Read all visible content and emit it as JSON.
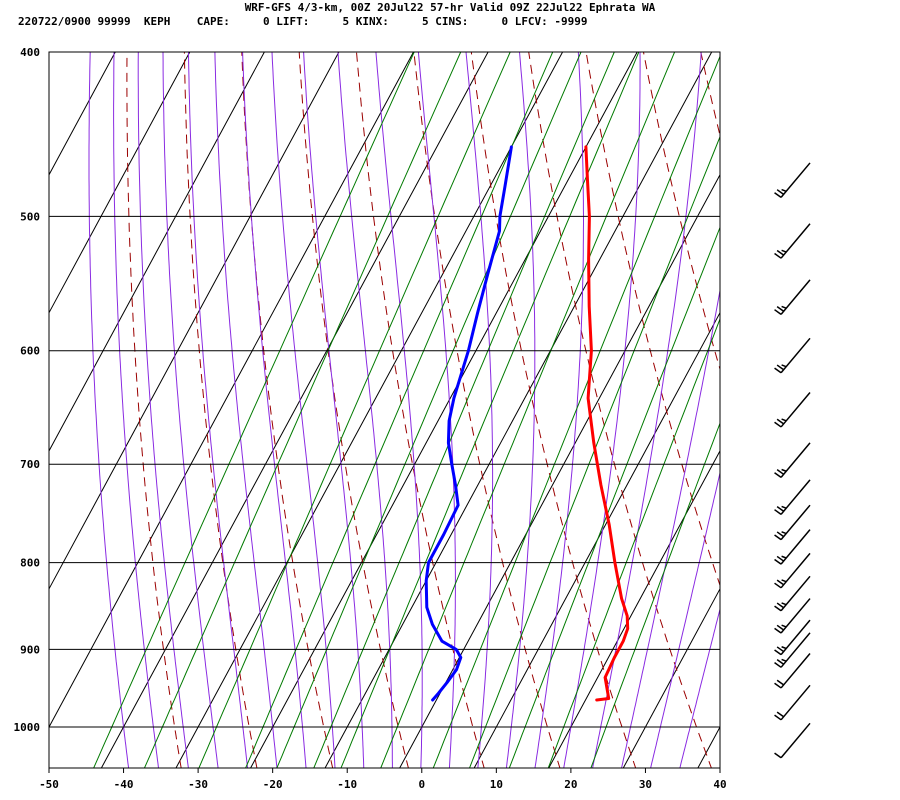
{
  "header": {
    "title": "WRF-GFS 4/3-km, 00Z 20Jul22 57-hr Valid 09Z 22Jul22 Ephrata WA",
    "station_line": "220722/0900 99999  KEPH    CAPE:     0 LIFT:     5 KINX:     5 CINS:     0 LFCV: -9999"
  },
  "colors": {
    "temperature": "#ff0000",
    "dewpoint": "#0000ff",
    "isotherm": "#000000",
    "dry_adiabat": "#9b0000",
    "moist_adiabat": "#8a2be2",
    "mixing_ratio": "#007a00",
    "wind_barb": "#000000"
  },
  "chart_data": {
    "type": "line",
    "subtype": "skew-t",
    "title": "WRF-GFS 4/3-km, 00Z 20Jul22 57-hr Valid 09Z 22Jul22 Ephrata WA",
    "xlabel": "",
    "ylabel": "",
    "xlim": [
      -50,
      40
    ],
    "ylim": [
      1050,
      400
    ],
    "y_scale": "log",
    "grid": true,
    "x_ticks": [
      -50,
      -40,
      -30,
      -20,
      -10,
      0,
      10,
      20,
      30,
      40
    ],
    "y_ticks": [
      400,
      500,
      600,
      700,
      800,
      900,
      1000
    ],
    "series": [
      {
        "role": "temperature",
        "x": [
          21.5,
          23.0,
          22.5,
          21.0,
          20.8,
          20.8,
          20.5,
          19.5,
          17.5,
          14.0,
          10.5,
          6.5,
          2.5,
          -1.5,
          -4.5,
          -8.0,
          -11.5,
          -14.5,
          -17.5,
          -20.0
        ],
        "y": [
          964,
          962,
          955,
          935,
          910,
          890,
          875,
          860,
          840,
          800,
          760,
          720,
          680,
          640,
          600,
          565,
          530,
          500,
          475,
          455
        ]
      },
      {
        "role": "dewpoint",
        "x": [
          -0.5,
          -0.2,
          0.2,
          0.5,
          0.2,
          -1.0,
          -3.5,
          -6.0,
          -8.0,
          -10.0,
          -11.0,
          -11.0,
          -11.2,
          -13.0,
          -15.0,
          -17.0,
          -18.5,
          -19.5,
          -21.0,
          -22.5,
          -24.0,
          -25.5,
          -26.5,
          -28.0,
          -30.0
        ],
        "y": [
          964,
          955,
          940,
          925,
          910,
          900,
          890,
          870,
          850,
          820,
          800,
          770,
          740,
          720,
          700,
          680,
          660,
          640,
          600,
          570,
          540,
          510,
          500,
          480,
          455
        ]
      }
    ],
    "wind_barbs": [
      {
        "pressure": 995,
        "speed_kt": 10
      },
      {
        "pressure": 945,
        "speed_kt": 20
      },
      {
        "pressure": 905,
        "speed_kt": 20
      },
      {
        "pressure": 880,
        "speed_kt": 25
      },
      {
        "pressure": 865,
        "speed_kt": 25
      },
      {
        "pressure": 840,
        "speed_kt": 25
      },
      {
        "pressure": 815,
        "speed_kt": 25
      },
      {
        "pressure": 790,
        "speed_kt": 25
      },
      {
        "pressure": 765,
        "speed_kt": 25
      },
      {
        "pressure": 740,
        "speed_kt": 25
      },
      {
        "pressure": 715,
        "speed_kt": 25
      },
      {
        "pressure": 680,
        "speed_kt": 25
      },
      {
        "pressure": 635,
        "speed_kt": 25
      },
      {
        "pressure": 590,
        "speed_kt": 25
      },
      {
        "pressure": 545,
        "speed_kt": 25
      },
      {
        "pressure": 505,
        "speed_kt": 25
      },
      {
        "pressure": 465,
        "speed_kt": 25
      }
    ]
  }
}
